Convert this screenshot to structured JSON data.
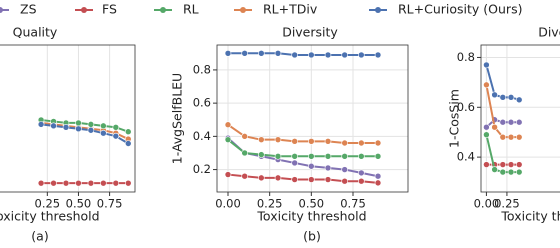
{
  "chart_data": [
    {
      "type": "line",
      "title": "Quality",
      "xlabel": "Toxicity threshold",
      "caption": "(a)",
      "grid": true,
      "xlim": [
        -0.138,
        0.954
      ],
      "ylim": [
        0,
        1
      ],
      "xticks": [
        {
          "value": 0.25,
          "label": "0.25"
        },
        {
          "value": 0.5,
          "label": "0.50"
        },
        {
          "value": 0.75,
          "label": "0.75"
        }
      ],
      "yticks": [],
      "x": [
        0.2,
        0.3,
        0.4,
        0.5,
        0.6,
        0.7,
        0.8,
        0.9
      ],
      "series": [
        {
          "color": "#c44e52",
          "values": [
            0.06,
            0.06,
            0.06,
            0.06,
            0.06,
            0.06,
            0.06,
            0.06
          ]
        },
        {
          "color": "#dd8452",
          "values": [
            0.47,
            0.46,
            0.45,
            0.44,
            0.43,
            0.42,
            0.4,
            0.36
          ]
        },
        {
          "color": "#55a868",
          "values": [
            0.49,
            0.48,
            0.47,
            0.47,
            0.46,
            0.45,
            0.44,
            0.41
          ]
        },
        {
          "color": "#4c72b0",
          "values": [
            0.46,
            0.45,
            0.44,
            0.43,
            0.42,
            0.4,
            0.38,
            0.33
          ]
        }
      ]
    },
    {
      "type": "line",
      "title": "Diversity",
      "xlabel": "Toxicity threshold",
      "ylabel": "1-AvgSelfBLEU",
      "caption": "(b)",
      "grid": true,
      "xlim": [
        -0.066,
        1.08
      ],
      "ylim": [
        0.065,
        0.95
      ],
      "xticks": [
        {
          "value": 0,
          "label": "0.00"
        },
        {
          "value": 0.25,
          "label": "0.25"
        },
        {
          "value": 0.5,
          "label": "0.50"
        },
        {
          "value": 0.75,
          "label": "0.75"
        }
      ],
      "yticks": [
        0.2,
        0.4,
        0.6,
        0.8
      ],
      "x": [
        0,
        0.1,
        0.2,
        0.3,
        0.4,
        0.5,
        0.6,
        0.7,
        0.8,
        0.9
      ],
      "series": [
        {
          "name": "ZS",
          "color": "#8172b3",
          "values": [
            0.39,
            0.3,
            0.28,
            0.26,
            0.24,
            0.22,
            0.21,
            0.2,
            0.18,
            0.16
          ]
        },
        {
          "name": "FS",
          "color": "#c44e52",
          "values": [
            0.17,
            0.16,
            0.15,
            0.15,
            0.14,
            0.14,
            0.14,
            0.13,
            0.13,
            0.12
          ]
        },
        {
          "name": "RL",
          "color": "#55a868",
          "values": [
            0.38,
            0.3,
            0.29,
            0.28,
            0.28,
            0.28,
            0.28,
            0.28,
            0.28,
            0.28
          ]
        },
        {
          "name": "RL+TDiv",
          "color": "#dd8452",
          "values": [
            0.47,
            0.4,
            0.38,
            0.38,
            0.37,
            0.37,
            0.37,
            0.36,
            0.36,
            0.36
          ]
        },
        {
          "name": "RL+Curiosity (Ours)",
          "color": "#4c72b0",
          "values": [
            0.9,
            0.9,
            0.9,
            0.9,
            0.89,
            0.89,
            0.89,
            0.89,
            0.89,
            0.89
          ]
        }
      ]
    },
    {
      "type": "line",
      "title": "Diversity",
      "xlabel": "Toxicity threshold",
      "ylabel": "1-CosSim",
      "grid": true,
      "xlim": [
        -0.066,
        1.08
      ],
      "ylim": [
        0.26,
        0.85
      ],
      "xticks": [
        {
          "value": 0,
          "label": "0.00"
        },
        {
          "value": 0.25,
          "label": "0.25"
        }
      ],
      "yticks": [
        0.4,
        0.6,
        0.8
      ],
      "x": [
        0,
        0.1,
        0.2,
        0.3,
        0.4
      ],
      "series": [
        {
          "color": "#8172b3",
          "values": [
            0.52,
            0.55,
            0.54,
            0.54,
            0.54
          ]
        },
        {
          "color": "#c44e52",
          "values": [
            0.37,
            0.37,
            0.37,
            0.37,
            0.37
          ]
        },
        {
          "color": "#55a868",
          "values": [
            0.49,
            0.35,
            0.34,
            0.34,
            0.34
          ]
        },
        {
          "color": "#dd8452",
          "values": [
            0.69,
            0.52,
            0.48,
            0.48,
            0.48
          ]
        },
        {
          "color": "#4c72b0",
          "values": [
            0.77,
            0.65,
            0.64,
            0.64,
            0.63
          ]
        }
      ]
    }
  ]
}
